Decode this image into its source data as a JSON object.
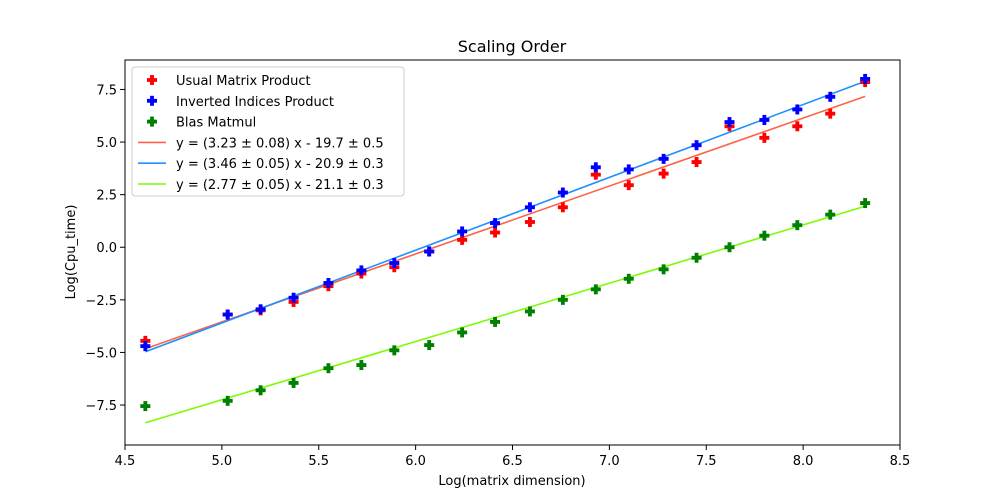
{
  "chart_data": {
    "type": "scatter",
    "title": "Scaling Order",
    "xlabel": "Log(matrix dimension)",
    "ylabel": "Log(Cpu_time)",
    "xlim": [
      4.5,
      8.5
    ],
    "ylim": [
      -9.4,
      8.9
    ],
    "xticks": [
      4.5,
      5.0,
      5.5,
      6.0,
      6.5,
      7.0,
      7.5,
      8.0,
      8.5
    ],
    "xtick_labels": [
      "4.5",
      "5.0",
      "5.5",
      "6.0",
      "6.5",
      "7.0",
      "7.5",
      "8.0",
      "8.5"
    ],
    "yticks": [
      -7.5,
      -5.0,
      -2.5,
      0.0,
      2.5,
      5.0,
      7.5
    ],
    "ytick_labels": [
      "−7.5",
      "−5.0",
      "−2.5",
      "0.0",
      "2.5",
      "5.0",
      "7.5"
    ],
    "grid": false,
    "legend_position": "upper-left",
    "x": [
      4.605,
      5.03,
      5.2,
      5.37,
      5.55,
      5.72,
      5.89,
      6.07,
      6.24,
      6.41,
      6.59,
      6.76,
      6.93,
      7.1,
      7.28,
      7.45,
      7.62,
      7.8,
      7.97,
      8.14,
      8.32
    ],
    "series": [
      {
        "name": "Usual Matrix Product",
        "color": "#ff0000",
        "marker": "plus",
        "values": [
          -4.45,
          -3.2,
          -3.0,
          -2.6,
          -1.85,
          -1.25,
          -0.95,
          -0.2,
          0.35,
          0.7,
          1.2,
          1.9,
          3.45,
          2.95,
          3.5,
          4.05,
          5.75,
          5.2,
          5.75,
          6.35,
          7.85
        ]
      },
      {
        "name": "Inverted Indices Product",
        "color": "#0000ff",
        "marker": "plus",
        "values": [
          -4.7,
          -3.2,
          -2.95,
          -2.4,
          -1.7,
          -1.1,
          -0.75,
          -0.2,
          0.75,
          1.15,
          1.9,
          2.6,
          3.8,
          3.7,
          4.2,
          4.85,
          5.95,
          6.05,
          6.55,
          7.15,
          8.0
        ]
      },
      {
        "name": "Blas Matmul",
        "color": "#008000",
        "marker": "plus",
        "values": [
          -7.55,
          -7.3,
          -6.8,
          -6.45,
          -5.75,
          -5.6,
          -4.9,
          -4.65,
          -4.05,
          -3.55,
          -3.05,
          -2.5,
          -2.0,
          -1.5,
          -1.05,
          -0.5,
          0.0,
          0.55,
          1.05,
          1.55,
          2.1
        ]
      }
    ],
    "fits": [
      {
        "name": "y = (3.23 ± 0.08) x - 19.7 ± 0.5",
        "color": "#ff6347",
        "slope": 3.23,
        "intercept": -19.7,
        "x_range": [
          4.605,
          8.32
        ]
      },
      {
        "name": "y = (3.46 ± 0.05) x - 20.9 ± 0.3",
        "color": "#1e90ff",
        "slope": 3.46,
        "intercept": -20.9,
        "x_range": [
          4.605,
          8.32
        ]
      },
      {
        "name": "y = (2.77 ± 0.05) x - 21.1 ± 0.3",
        "color": "#7cfc00",
        "slope": 2.77,
        "intercept": -21.1,
        "x_range": [
          4.605,
          8.32
        ]
      }
    ]
  }
}
